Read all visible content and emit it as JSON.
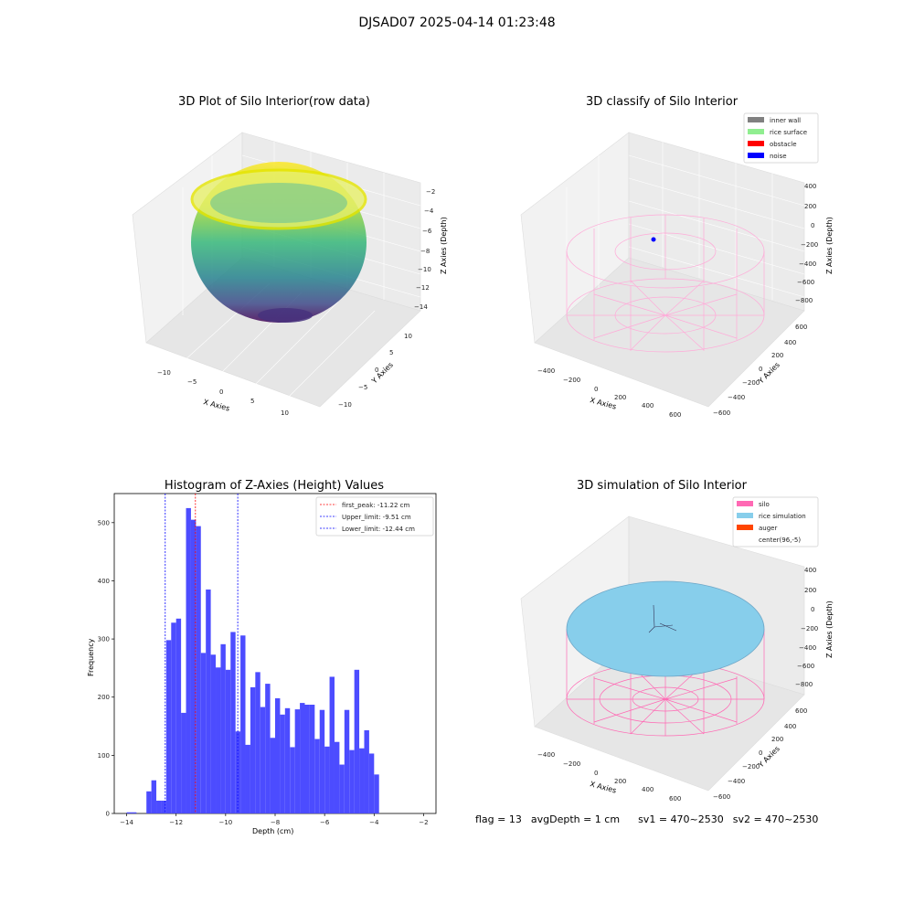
{
  "figure": {
    "suptitle": "DJSAD07 2025-04-14 01:23:48"
  },
  "panels": {
    "raw": {
      "title": "3D Plot of Silo Interior(row data)",
      "xlabel": "X Axies",
      "ylabel": "Y Axies",
      "zlabel": "Z Axies (Depth)",
      "xticks": [
        "−10",
        "−5",
        "0",
        "5",
        "10"
      ],
      "yticks": [
        "10",
        "5",
        "0",
        "−5",
        "−10"
      ],
      "zticks": [
        "−2",
        "−4",
        "−6",
        "−8",
        "−10",
        "−12",
        "−14"
      ]
    },
    "classify": {
      "title": "3D classify of Silo Interior",
      "xlabel": "X Axies",
      "ylabel": "Y Axies",
      "zlabel": "Z Axies (Depth)",
      "xticks": [
        "−400",
        "−200",
        "0",
        "200",
        "400",
        "600"
      ],
      "yticks": [
        "600",
        "400",
        "200",
        "0",
        "−200",
        "−400",
        "−600"
      ],
      "zticks": [
        "400",
        "200",
        "0",
        "−200",
        "−400",
        "−600",
        "−800"
      ],
      "legend": [
        {
          "label": "inner wall",
          "color": "#808080"
        },
        {
          "label": "rice surface",
          "color": "#90ee90"
        },
        {
          "label": "obstacle",
          "color": "#ff0000"
        },
        {
          "label": "noise",
          "color": "#0000ff"
        }
      ]
    },
    "histogram": {
      "title": "Histogram of Z-Axies (Height) Values",
      "xlabel": "Depth (cm)",
      "ylabel": "Frequency",
      "xticks": [
        "−14",
        "−12",
        "−10",
        "−8",
        "−6",
        "−4",
        "−2"
      ],
      "yticks": [
        "0",
        "100",
        "200",
        "300",
        "400",
        "500"
      ],
      "legend": [
        {
          "label": "first_peak: -11.22 cm",
          "color": "#ff0000"
        },
        {
          "label": "Upper_limit: -9.51 cm",
          "color": "#0000ff"
        },
        {
          "label": "Lower_limit: -12.44 cm",
          "color": "#0000ff"
        }
      ]
    },
    "simulation": {
      "title": "3D simulation of Silo Interior",
      "xlabel": "X Axies",
      "ylabel": "Y Axies",
      "zlabel": "Z Axies (Depth)",
      "xticks": [
        "−400",
        "−200",
        "0",
        "200",
        "400",
        "600"
      ],
      "yticks": [
        "600",
        "400",
        "200",
        "0",
        "−200",
        "−400",
        "−600"
      ],
      "zticks": [
        "400",
        "200",
        "0",
        "−200",
        "−400",
        "−600",
        "−800"
      ],
      "legend": [
        {
          "label": "silo",
          "color": "#ff69b4"
        },
        {
          "label": "rice simulation",
          "color": "#87ceeb"
        },
        {
          "label": "auger",
          "color": "#ff4500"
        },
        {
          "label": "center(96,-5)",
          "color": ""
        }
      ]
    }
  },
  "footer": {
    "flag": "flag = 13",
    "avg_depth": "avgDepth = 1 cm",
    "sv1": "sv1 = 470~2530",
    "sv2": "sv2 = 470~2530"
  },
  "chart_data": {
    "type": "bar",
    "title": "Histogram of Z-Axies (Height) Values",
    "xlabel": "Depth (cm)",
    "ylabel": "Frequency",
    "xlim": [
      -14.5,
      -1.5
    ],
    "ylim": [
      0,
      550
    ],
    "bin_width": 0.2,
    "bins": [
      [
        -14.0,
        2
      ],
      [
        -13.8,
        2
      ],
      [
        -13.6,
        0
      ],
      [
        -13.4,
        0
      ],
      [
        -13.2,
        38
      ],
      [
        -13.0,
        57
      ],
      [
        -12.8,
        22
      ],
      [
        -12.6,
        22
      ],
      [
        -12.4,
        298
      ],
      [
        -12.2,
        328
      ],
      [
        -12.0,
        335
      ],
      [
        -11.8,
        173
      ],
      [
        -11.6,
        525
      ],
      [
        -11.4,
        505
      ],
      [
        -11.2,
        494
      ],
      [
        -11.0,
        276
      ],
      [
        -10.8,
        385
      ],
      [
        -10.6,
        273
      ],
      [
        -10.4,
        251
      ],
      [
        -10.2,
        291
      ],
      [
        -10.0,
        247
      ],
      [
        -9.8,
        312
      ],
      [
        -9.6,
        141
      ],
      [
        -9.4,
        306
      ],
      [
        -9.2,
        118
      ],
      [
        -9.0,
        217
      ],
      [
        -8.8,
        243
      ],
      [
        -8.6,
        183
      ],
      [
        -8.4,
        223
      ],
      [
        -8.2,
        130
      ],
      [
        -8.0,
        198
      ],
      [
        -7.8,
        170
      ],
      [
        -7.6,
        181
      ],
      [
        -7.4,
        114
      ],
      [
        -7.2,
        179
      ],
      [
        -7.0,
        190
      ],
      [
        -6.8,
        187
      ],
      [
        -6.6,
        187
      ],
      [
        -6.4,
        128
      ],
      [
        -6.2,
        178
      ],
      [
        -6.0,
        115
      ],
      [
        -5.8,
        235
      ],
      [
        -5.6,
        123
      ],
      [
        -5.4,
        84
      ],
      [
        -5.2,
        178
      ],
      [
        -5.0,
        109
      ],
      [
        -4.8,
        247
      ],
      [
        -4.6,
        112
      ],
      [
        -4.4,
        143
      ],
      [
        -4.2,
        103
      ],
      [
        -4.0,
        67
      ]
    ],
    "vlines": [
      {
        "label": "first_peak: -11.22 cm",
        "x": -11.22,
        "color": "#ff0000"
      },
      {
        "label": "Upper_limit: -9.51 cm",
        "x": -9.51,
        "color": "#0000ff"
      },
      {
        "label": "Lower_limit: -12.44 cm",
        "x": -12.44,
        "color": "#0000ff"
      }
    ],
    "bar_color": "#4c4cff"
  }
}
